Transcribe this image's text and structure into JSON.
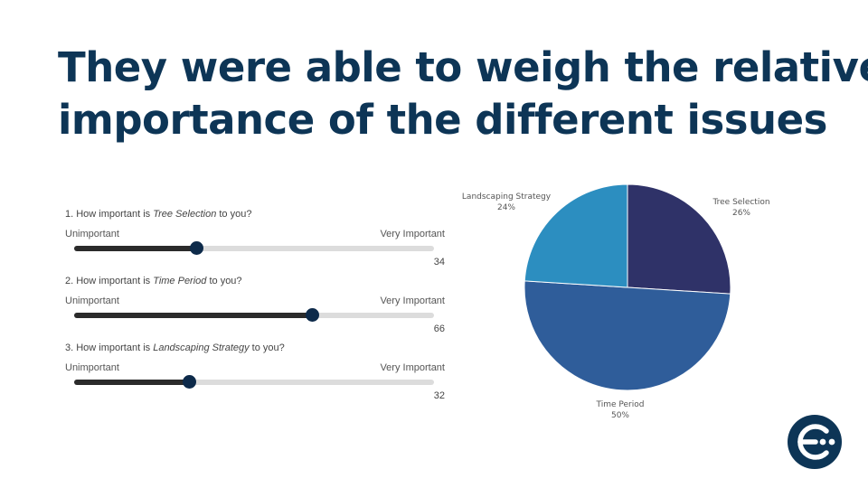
{
  "title_line1": "They were able to weigh the relative",
  "title_line2": "importance of the different issues",
  "questions": [
    {
      "prefix": "1. How important is ",
      "topic": "Tree Selection",
      "suffix": " to you?",
      "low": "Unimportant",
      "high": "Very Important",
      "value": 34,
      "value_text": "34"
    },
    {
      "prefix": "2. How important is ",
      "topic": "Time Period",
      "suffix": " to you?",
      "low": "Unimportant",
      "high": "Very Important",
      "value": 66,
      "value_text": "66"
    },
    {
      "prefix": "3. How important is ",
      "topic": "Landscaping Strategy",
      "suffix": " to you?",
      "low": "Unimportant",
      "high": "Very Important",
      "value": 32,
      "value_text": "32"
    }
  ],
  "chart_data": {
    "type": "pie",
    "slices": [
      {
        "label": "Tree Selection",
        "value": 26,
        "pct": "26%",
        "color": "#2f3268"
      },
      {
        "label": "Time Period",
        "value": 50,
        "pct": "50%",
        "color": "#2f5d9a"
      },
      {
        "label": "Landscaping Strategy",
        "value": 24,
        "pct": "24%",
        "color": "#2c8ec0"
      }
    ]
  },
  "slider_range": [
    0,
    100
  ],
  "colors": {
    "title": "#0d3556",
    "thumb": "#0d2a4a",
    "track": "#dcdcdc",
    "fill": "#2b2b2b",
    "logo": "#0d3556"
  },
  "logo_icon": "company-logo-icon"
}
